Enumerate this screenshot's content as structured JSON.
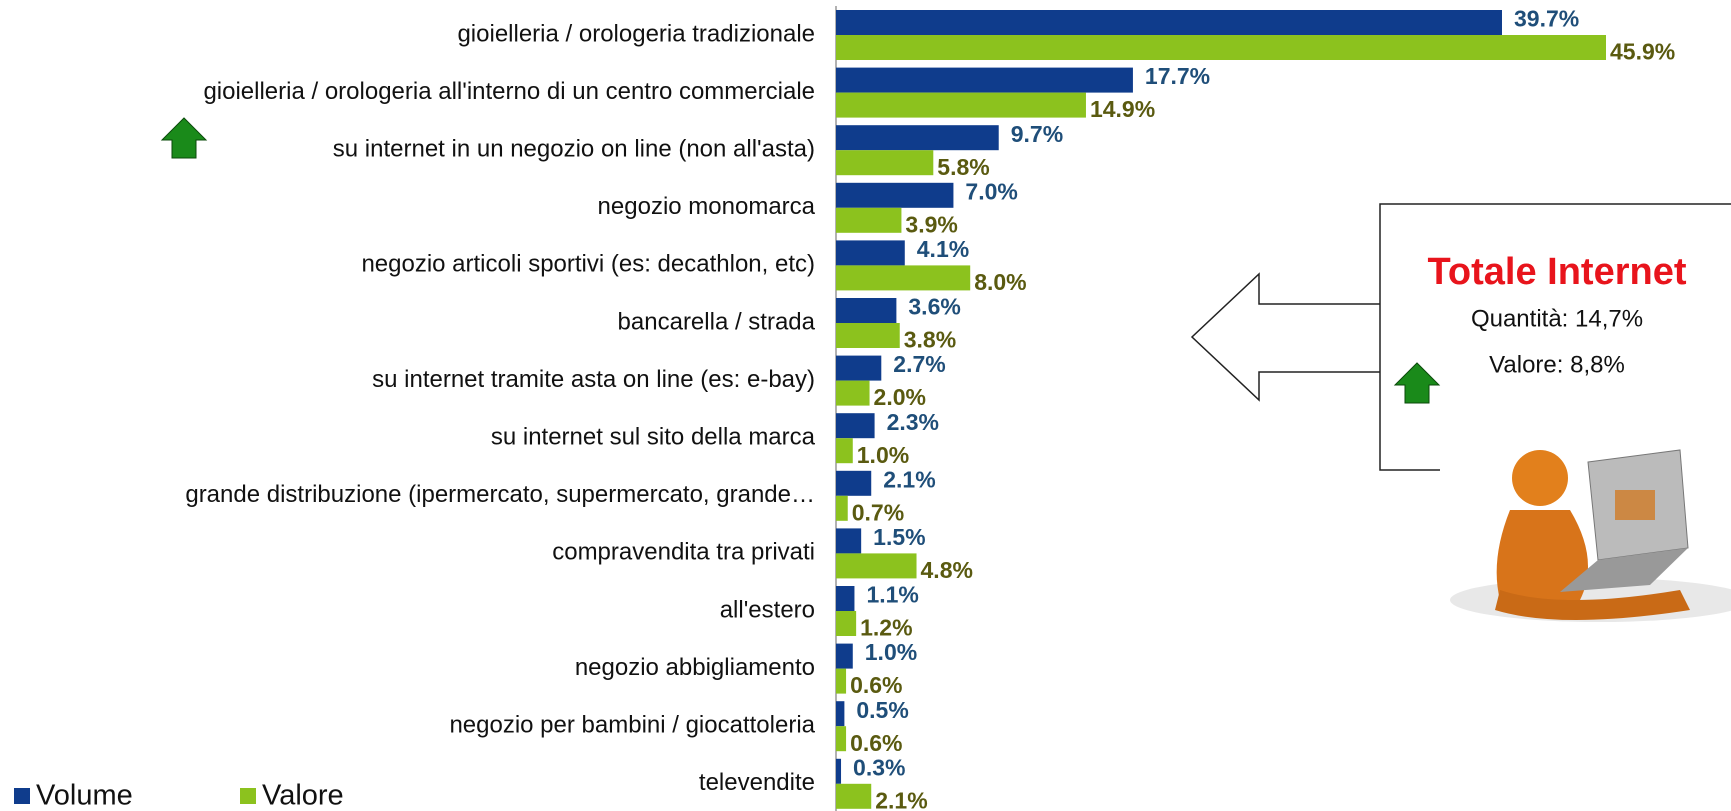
{
  "chart_data": {
    "type": "bar",
    "orientation": "horizontal",
    "categories": [
      "gioielleria / orologeria tradizionale",
      "gioielleria / orologeria all'interno di un centro commerciale",
      "su internet in un negozio on line (non all'asta)",
      "negozio monomarca",
      "negozio articoli sportivi (es: decathlon, etc)",
      "bancarella / strada",
      "su internet tramite asta on line (es: e-bay)",
      "su internet sul sito della marca",
      "grande distribuzione (ipermercato, supermercato, grande…",
      "compravendita tra privati",
      "all'estero",
      "negozio abbigliamento",
      "negozio per bambini / giocattoleria",
      "televendite"
    ],
    "series": [
      {
        "name": "Volume",
        "color": "#0f3c8c",
        "values": [
          39.7,
          17.7,
          9.7,
          7.0,
          4.1,
          3.6,
          2.7,
          2.3,
          2.1,
          1.5,
          1.1,
          1.0,
          0.5,
          0.3
        ],
        "value_labels": [
          "39.7%",
          "17.7%",
          "9.7%",
          "7.0%",
          "4.1%",
          "3.6%",
          "2.7%",
          "2.3%",
          "2.1%",
          "1.5%",
          "1.1%",
          "1.0%",
          "0.5%",
          "0.3%"
        ]
      },
      {
        "name": "Valore",
        "color": "#8cc21e",
        "values": [
          45.9,
          14.9,
          5.8,
          3.9,
          8.0,
          3.8,
          2.0,
          1.0,
          0.7,
          4.8,
          1.2,
          0.6,
          0.6,
          2.1
        ],
        "value_labels": [
          "45.9%",
          "14.9%",
          "5.8%",
          "3.9%",
          "8.0%",
          "3.8%",
          "2.0%",
          "1.0%",
          "0.7%",
          "4.8%",
          "1.2%",
          "0.6%",
          "0.6%",
          "2.1%"
        ]
      }
    ],
    "legend": "bottom-left",
    "annotation": {
      "title": "Totale Internet",
      "lines": [
        "Quantità: 14,7%",
        "Valore: 8,8%"
      ]
    }
  }
}
